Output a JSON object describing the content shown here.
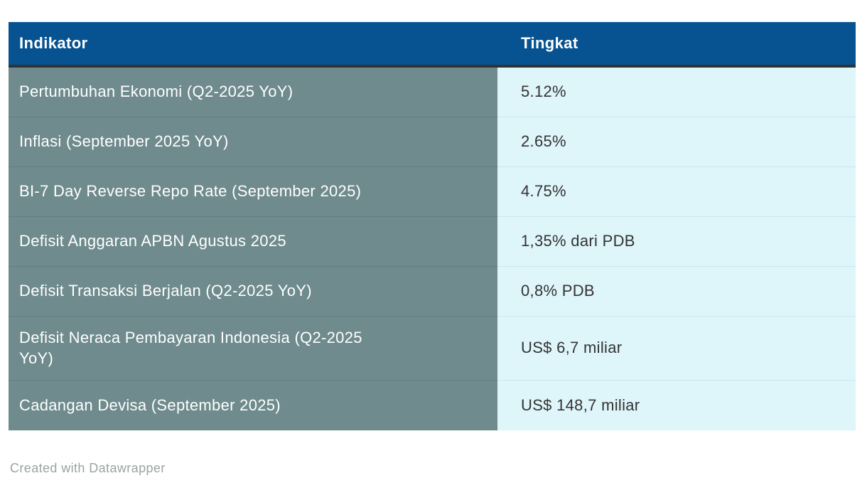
{
  "colors": {
    "header_bg": "#075290",
    "header_text": "#ffffff",
    "header_bottom_rule": "#2e3338",
    "indicator_column_bg": "#6f8b8d",
    "indicator_column_text": "#ffffff",
    "indicator_divider": "#617e80",
    "value_column_bg": "#def5fa",
    "value_column_text": "#333333",
    "value_divider": "#cbe8ed",
    "attribution_text": "#9aa3a3"
  },
  "table": {
    "columns": [
      {
        "key": "indicator",
        "label": "Indikator"
      },
      {
        "key": "value",
        "label": "Tingkat"
      }
    ],
    "rows": [
      {
        "indicator": "Pertumbuhan Ekonomi (Q2-2025 YoY)",
        "value": "5.12%"
      },
      {
        "indicator": "Inflasi (September 2025 YoY)",
        "value": "2.65%"
      },
      {
        "indicator": "BI-7 Day Reverse Repo Rate (September 2025)",
        "value": "4.75%"
      },
      {
        "indicator": "Defisit Anggaran APBN Agustus 2025",
        "value": "1,35% dari PDB"
      },
      {
        "indicator": "Defisit Transaksi Berjalan (Q2-2025 YoY)",
        "value": "0,8% PDB"
      },
      {
        "indicator": "Defisit Neraca Pembayaran Indonesia (Q2-2025 YoY)",
        "value": "US$ 6,7 miliar"
      },
      {
        "indicator": "Cadangan Devisa (September 2025)",
        "value": "US$ 148,7 miliar"
      }
    ]
  },
  "footer": {
    "attribution": "Created with Datawrapper"
  },
  "chart_data": {
    "type": "table",
    "title": "",
    "columns": [
      "Indikator",
      "Tingkat"
    ],
    "rows": [
      [
        "Pertumbuhan Ekonomi (Q2-2025 YoY)",
        "5.12%"
      ],
      [
        "Inflasi (September 2025 YoY)",
        "2.65%"
      ],
      [
        "BI-7 Day Reverse Repo Rate (September 2025)",
        "4.75%"
      ],
      [
        "Defisit Anggaran APBN Agustus 2025",
        "1,35% dari PDB"
      ],
      [
        "Defisit Transaksi Berjalan (Q2-2025 YoY)",
        "0,8% PDB"
      ],
      [
        "Defisit Neraca Pembayaran Indonesia (Q2-2025 YoY)",
        "US$ 6,7 miliar"
      ],
      [
        "Cadangan Devisa (September 2025)",
        "US$ 148,7 miliar"
      ]
    ]
  }
}
